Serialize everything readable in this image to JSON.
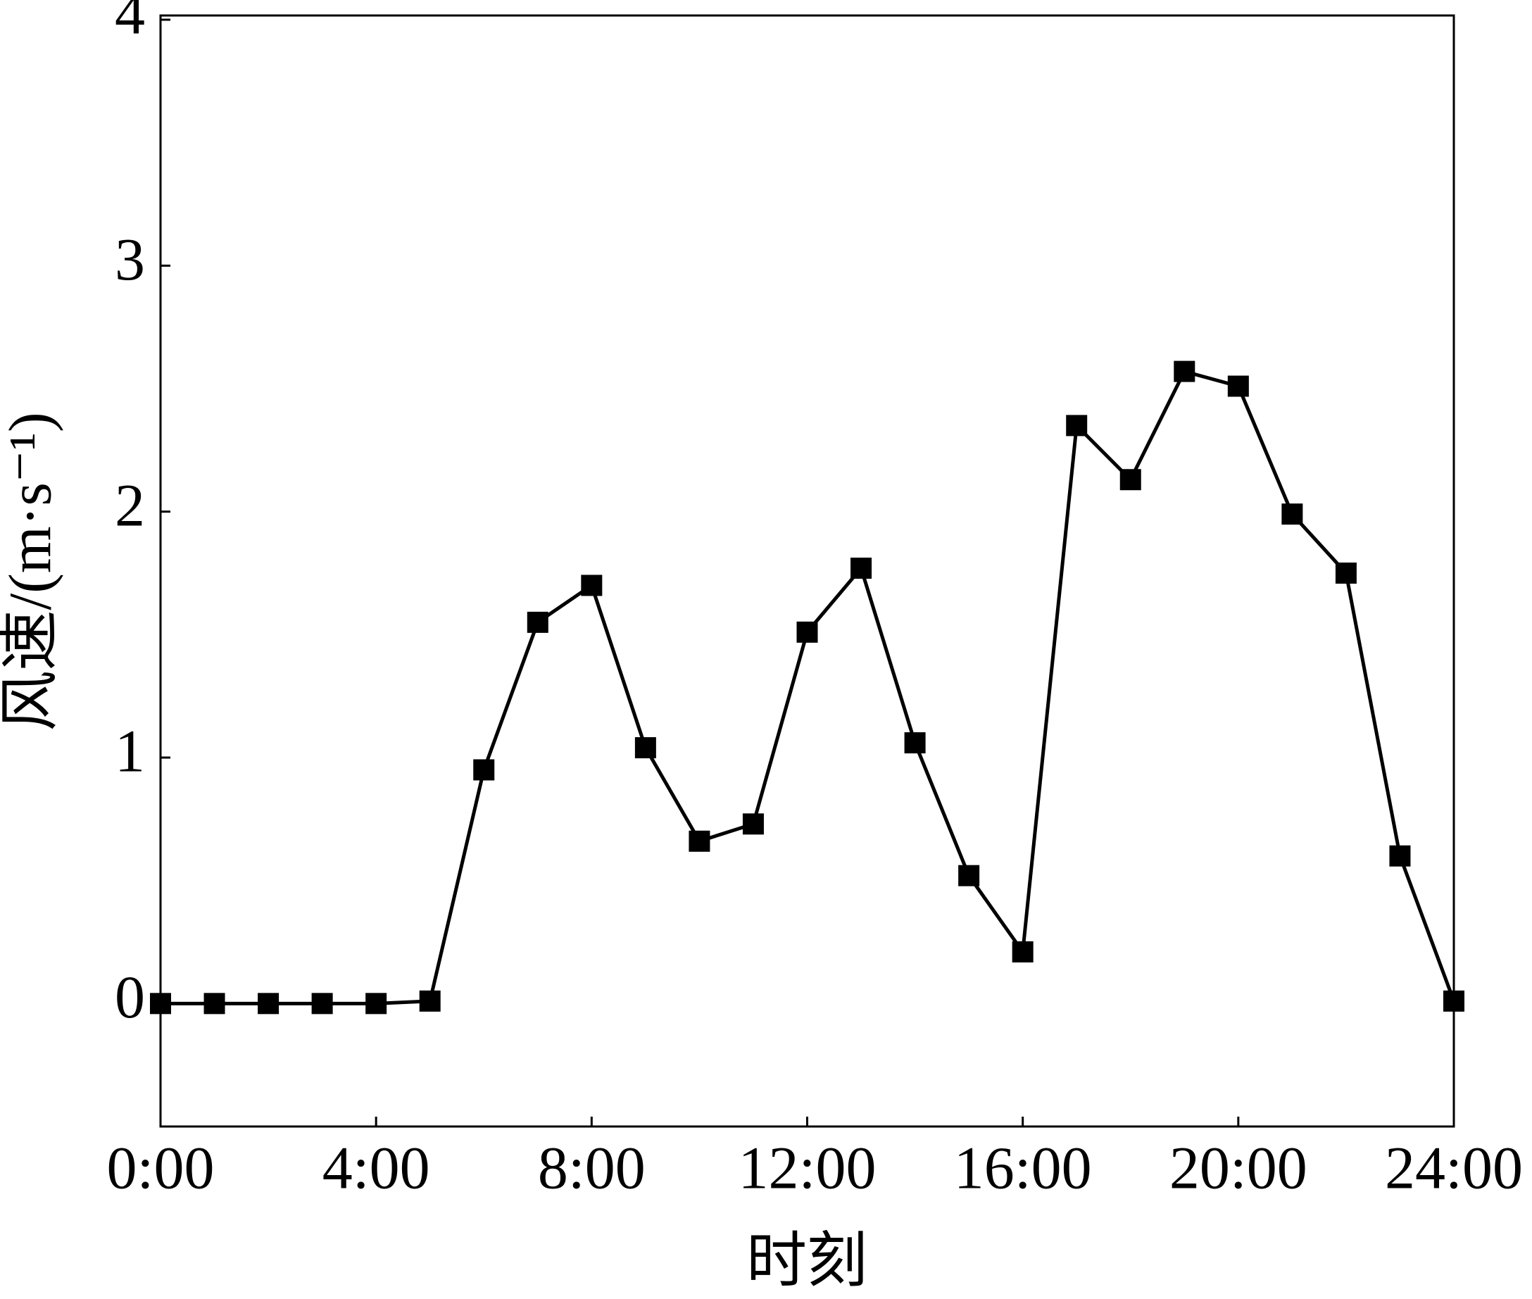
{
  "chart_data": {
    "type": "line",
    "xlabel": "时刻",
    "ylabel": "风速/(m·s⁻¹)",
    "x": [
      0,
      1,
      2,
      3,
      4,
      5,
      6,
      7,
      8,
      9,
      10,
      11,
      12,
      13,
      14,
      15,
      16,
      17,
      18,
      19,
      20,
      21,
      22,
      23,
      24
    ],
    "series": [
      {
        "name": "风速",
        "color": "#000000",
        "values": [
          0,
          0,
          0,
          0,
          0,
          0.01,
          0.95,
          1.55,
          1.7,
          1.04,
          0.66,
          0.73,
          1.51,
          1.77,
          1.06,
          0.52,
          0.21,
          2.35,
          2.13,
          2.57,
          2.51,
          1.99,
          1.75,
          0.6,
          0.01
        ]
      }
    ],
    "xlim": [
      0,
      24
    ],
    "xticks": [
      {
        "value": 0,
        "label": "0:00"
      },
      {
        "value": 4,
        "label": "4:00"
      },
      {
        "value": 8,
        "label": "8:00"
      },
      {
        "value": 12,
        "label": "12:00"
      },
      {
        "value": 16,
        "label": "16:00"
      },
      {
        "value": 20,
        "label": "20:00"
      },
      {
        "value": 24,
        "label": "24:00"
      }
    ],
    "ylim": [
      -0.5,
      4
    ],
    "yticks": [
      0,
      1,
      2,
      3,
      4
    ],
    "grid": false,
    "marker": "square"
  }
}
